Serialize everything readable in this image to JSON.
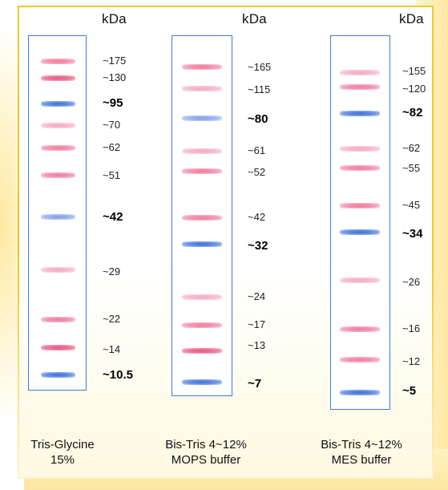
{
  "unit_label": "kDa",
  "colors": {
    "frame": "#f3c62a",
    "lane_border": "#3d7bd6",
    "pink_band": "#ef7a9e",
    "blue_band": "#3c6fd8"
  },
  "lanes": [
    {
      "caption_line1": "Tris-Glycine",
      "caption_line2": "15%",
      "markers": [
        {
          "label": "~175",
          "color": "pink",
          "bold": false
        },
        {
          "label": "~130",
          "color": "pink",
          "bold": false
        },
        {
          "label": "~95",
          "color": "blue",
          "bold": true
        },
        {
          "label": "~70",
          "color": "pink",
          "bold": false
        },
        {
          "label": "~62",
          "color": "pink",
          "bold": false
        },
        {
          "label": "~51",
          "color": "pink",
          "bold": false
        },
        {
          "label": "~42",
          "color": "blue",
          "bold": true
        },
        {
          "label": "~29",
          "color": "pink",
          "bold": false
        },
        {
          "label": "~22",
          "color": "pink",
          "bold": false
        },
        {
          "label": "~14",
          "color": "pink",
          "bold": false
        },
        {
          "label": "~10.5",
          "color": "blue",
          "bold": true
        }
      ]
    },
    {
      "caption_line1": "Bis-Tris 4~12%",
      "caption_line2": "MOPS buffer",
      "markers": [
        {
          "label": "~165",
          "color": "pink",
          "bold": false
        },
        {
          "label": "~115",
          "color": "pink",
          "bold": false
        },
        {
          "label": "~80",
          "color": "blue",
          "bold": true
        },
        {
          "label": "~61",
          "color": "pink",
          "bold": false
        },
        {
          "label": "~52",
          "color": "pink",
          "bold": false
        },
        {
          "label": "~42",
          "color": "pink",
          "bold": false
        },
        {
          "label": "~32",
          "color": "blue",
          "bold": true
        },
        {
          "label": "~24",
          "color": "pink",
          "bold": false
        },
        {
          "label": "~17",
          "color": "pink",
          "bold": false
        },
        {
          "label": "~13",
          "color": "pink",
          "bold": false
        },
        {
          "label": "~7",
          "color": "blue",
          "bold": true
        }
      ]
    },
    {
      "caption_line1": "Bis-Tris 4~12%",
      "caption_line2": "MES buffer",
      "markers": [
        {
          "label": "~155",
          "color": "pink",
          "bold": false
        },
        {
          "label": "~120",
          "color": "pink",
          "bold": false
        },
        {
          "label": "~82",
          "color": "blue",
          "bold": true
        },
        {
          "label": "~62",
          "color": "pink",
          "bold": false
        },
        {
          "label": "~55",
          "color": "pink",
          "bold": false
        },
        {
          "label": "~45",
          "color": "pink",
          "bold": false
        },
        {
          "label": "~34",
          "color": "blue",
          "bold": true
        },
        {
          "label": "~26",
          "color": "pink",
          "bold": false
        },
        {
          "label": "~16",
          "color": "pink",
          "bold": false
        },
        {
          "label": "~12",
          "color": "pink",
          "bold": false
        },
        {
          "label": "~5",
          "color": "blue",
          "bold": true
        }
      ]
    }
  ]
}
